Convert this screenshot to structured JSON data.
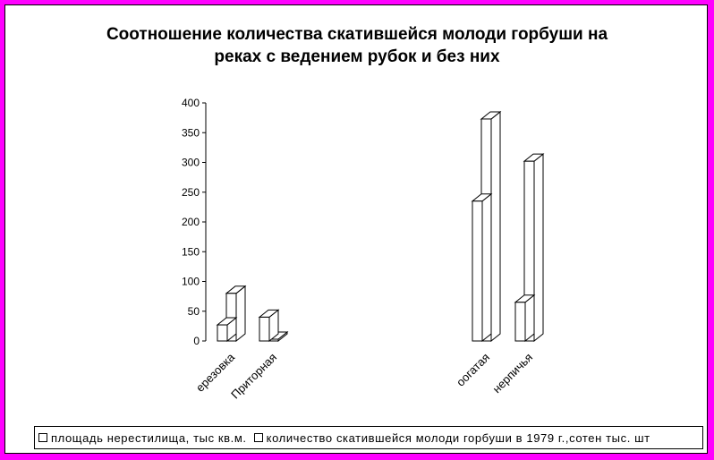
{
  "chart_data": {
    "type": "bar",
    "title_line1": "Соотношение количества скатившейся молоди горбуши на",
    "title_line2": "реках с ведением рубок и без них",
    "categories": [
      "Березовка",
      "Приторная",
      "Богатая",
      "Нерпичья"
    ],
    "category_labels": [
      "ерезовка",
      "Приторная",
      "оогатая",
      "нерпичья"
    ],
    "series": [
      {
        "name": "площадь нерестилища, тыс кв.м.",
        "values": [
          27,
          40,
          235,
          65
        ]
      },
      {
        "name": "количество скатившейся молоди горбуши в 1979 г.,сотен тыс. шт",
        "values": [
          80,
          3,
          373,
          302
        ]
      }
    ],
    "y_ticks": [
      "0",
      "50",
      "100",
      "150",
      "200",
      "250",
      "300",
      "350",
      "400"
    ],
    "ylim": [
      0,
      400
    ],
    "grid": false,
    "legend_position": "bottom",
    "colors": {
      "background": "#ff00ff",
      "plot": "#ffffff",
      "bar_fill": "#ffffff",
      "stroke": "#000000"
    }
  }
}
